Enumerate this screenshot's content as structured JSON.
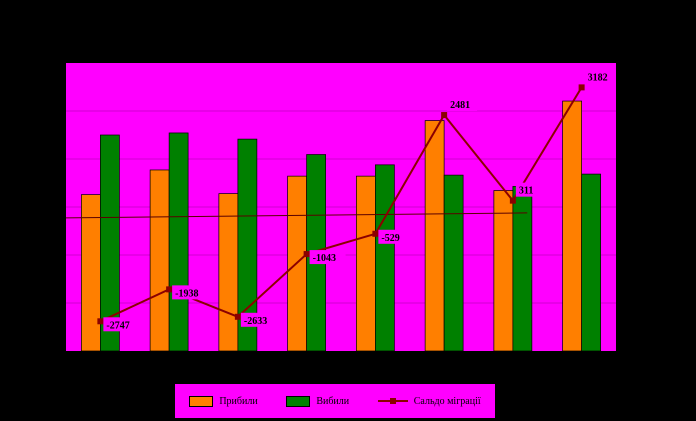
{
  "chart_data": {
    "type": "bar",
    "categories": [
      "",
      "",
      "",
      "",
      "",
      "",
      "",
      ""
    ],
    "series": [
      {
        "name": "Прибили",
        "kind": "bar",
        "color": "#ff7f00",
        "values": [
          7600,
          8800,
          7650,
          8500,
          8500,
          11200,
          7800,
          12150
        ]
      },
      {
        "name": "Вибили",
        "kind": "bar",
        "color": "#008000",
        "values": [
          10500,
          10600,
          10300,
          9550,
          9050,
          8550,
          8000,
          8600
        ]
      },
      {
        "name": "Сальдо міграції",
        "kind": "line",
        "color": "#8b0000",
        "values": [
          -2747,
          -1938,
          -2633,
          -1043,
          -529,
          2481,
          311,
          3182
        ],
        "labels": [
          "-2747",
          "-1938",
          "-2633",
          "-1043",
          "-529",
          "2481",
          "311",
          "3182"
        ]
      }
    ],
    "ylim_bars": [
      0,
      14000
    ],
    "ylim_line": [
      -3500,
      3800
    ],
    "plot_background": "#ff00ff",
    "page_background": "#000000",
    "grid": true,
    "legend_position": "bottom"
  },
  "legend": {
    "items": [
      {
        "label": "Прибили",
        "color": "#ff7f00",
        "type": "bar"
      },
      {
        "label": "Вибили",
        "color": "#008000",
        "type": "bar"
      },
      {
        "label": "Сальдо міграції",
        "color": "#8b0000",
        "type": "line"
      }
    ]
  }
}
